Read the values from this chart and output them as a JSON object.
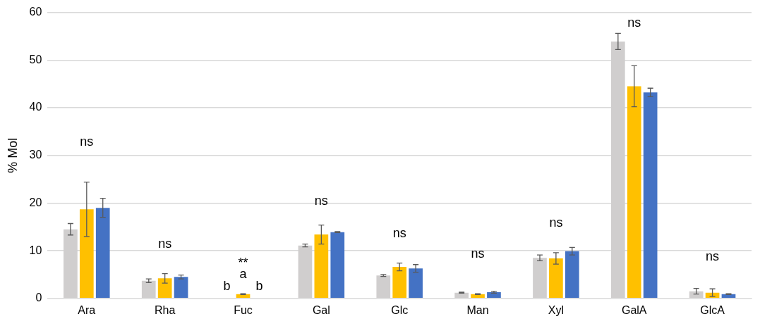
{
  "chart_data": {
    "type": "bar",
    "ylabel": "% Mol",
    "categories": [
      "Ara",
      "Rha",
      "Fuc",
      "Gal",
      "Glc",
      "Man",
      "Xyl",
      "GalA",
      "GlcA"
    ],
    "ylim": [
      0,
      60
    ],
    "yticks": [
      0,
      10,
      20,
      30,
      40,
      50,
      60
    ],
    "grid": "y",
    "legend": false,
    "series": [
      {
        "color": "#d0cece",
        "values": [
          14.5,
          3.7,
          0,
          11.1,
          4.8,
          1.2,
          8.5,
          53.9,
          1.5
        ],
        "errors": [
          1.2,
          0.4,
          null,
          0.3,
          0.2,
          0.1,
          0.6,
          1.7,
          0.6
        ]
      },
      {
        "color": "#ffc000",
        "values": [
          18.7,
          4.2,
          0.9,
          13.4,
          6.6,
          0.9,
          8.4,
          44.5,
          1.2
        ],
        "errors": [
          5.7,
          1.0,
          0.1,
          2.0,
          0.8,
          0.1,
          1.2,
          4.3,
          0.8
        ]
      },
      {
        "color": "#4472c4",
        "values": [
          19.0,
          4.5,
          0,
          13.9,
          6.3,
          1.3,
          9.9,
          43.2,
          0.9
        ],
        "errors": [
          2.0,
          0.4,
          null,
          0.1,
          0.8,
          0.2,
          0.8,
          0.9,
          0.1
        ]
      }
    ],
    "annotations": [
      "ns",
      "ns",
      "b",
      "a",
      "**",
      "b",
      "ns",
      "ns",
      "ns",
      "ns",
      "ns",
      "ns"
    ]
  }
}
